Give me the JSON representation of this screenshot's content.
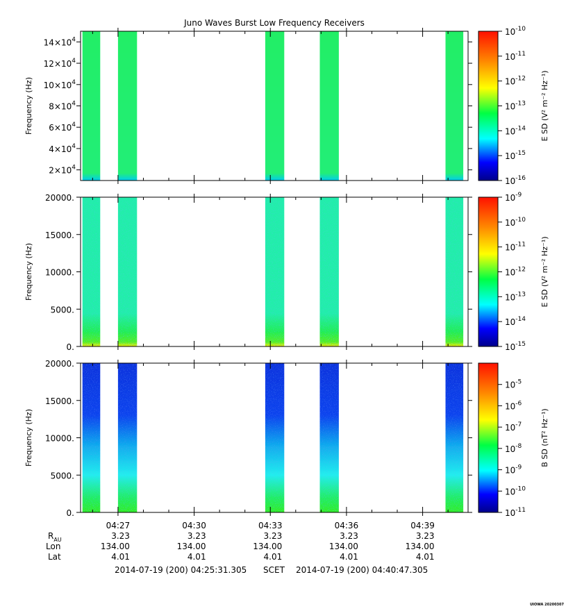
{
  "chart_data": {
    "type": "heatmap",
    "title": "Juno Waves Burst Low Frequency Receivers",
    "xaxis": {
      "tick_labels": [
        "04:27",
        "04:30",
        "04:33",
        "04:36",
        "04:39"
      ],
      "tick_minutes": [
        27,
        30,
        33,
        36,
        39
      ],
      "range_minutes": [
        25.525,
        40.79
      ]
    },
    "bursts_minutes": [
      [
        25.6,
        26.3
      ],
      [
        27.0,
        27.75
      ],
      [
        32.8,
        33.55
      ],
      [
        34.95,
        35.7
      ],
      [
        39.9,
        40.6
      ]
    ],
    "ephemeris": {
      "rows": [
        {
          "label": "R",
          "sub": "AU",
          "values": [
            "3.23",
            "3.23",
            "3.23",
            "3.23",
            "3.23"
          ]
        },
        {
          "label": "Lon",
          "sub": "",
          "values": [
            "134.00",
            "134.00",
            "134.00",
            "134.00",
            "134.00"
          ]
        },
        {
          "label": "Lat",
          "sub": "",
          "values": [
            "4.01",
            "4.01",
            "4.01",
            "4.01",
            "4.01"
          ]
        }
      ]
    },
    "time_range": {
      "start": "2014-07-19 (200) 04:25:31.305",
      "label": "SCET",
      "end": "2014-07-19 (200) 04:40:47.305"
    },
    "panels": [
      {
        "ylabel": "Frequency (Hz)",
        "ytick_labels": [
          {
            "base": "14×10",
            "exp": "4"
          },
          {
            "base": "12×10",
            "exp": "4"
          },
          {
            "base": "10×10",
            "exp": "4"
          },
          {
            "base": "8×10",
            "exp": "4"
          },
          {
            "base": "6×10",
            "exp": "4"
          },
          {
            "base": "4×10",
            "exp": "4"
          },
          {
            "base": "2×10",
            "exp": "4"
          }
        ],
        "ytick_values": [
          140000,
          120000,
          100000,
          80000,
          60000,
          40000,
          20000
        ],
        "ylim": [
          10000,
          150000
        ],
        "colorbar": {
          "label": "E SD (V² m⁻² Hz⁻¹)",
          "log_range": [
            -16,
            -10
          ],
          "tick_exponents": [
            "-10",
            "-11",
            "-12",
            "-13",
            "-14",
            "-15",
            "-16"
          ]
        },
        "color": "#22ee66"
      },
      {
        "ylabel": "Frequency (Hz)",
        "ytick_labels": [
          "20000.",
          "15000.",
          "10000.",
          "5000.",
          "0."
        ],
        "ytick_values": [
          20000,
          15000,
          10000,
          5000,
          0
        ],
        "ylim": [
          0,
          20000
        ],
        "colorbar": {
          "label": "E SD (V² m⁻² Hz⁻¹)",
          "log_range": [
            -15,
            -9
          ],
          "tick_exponents": [
            "-9",
            "-10",
            "-11",
            "-12",
            "-13",
            "-14",
            "-15"
          ]
        },
        "color": "#22eeaa"
      },
      {
        "ylabel": "Frequency (Hz)",
        "ytick_labels": [
          "20000.",
          "15000.",
          "10000.",
          "5000.",
          "0."
        ],
        "ytick_values": [
          20000,
          15000,
          10000,
          5000,
          0
        ],
        "ylim": [
          0,
          20000
        ],
        "colorbar": {
          "label": "B SD (nT² Hz⁻¹)",
          "log_range": [
            -11,
            -4
          ],
          "tick_exponents": [
            "-5",
            "-6",
            "-7",
            "-8",
            "-9",
            "-10",
            "-11"
          ]
        },
        "color": "#1133dd"
      }
    ],
    "footer_tag": "UIOWA 20200307"
  }
}
